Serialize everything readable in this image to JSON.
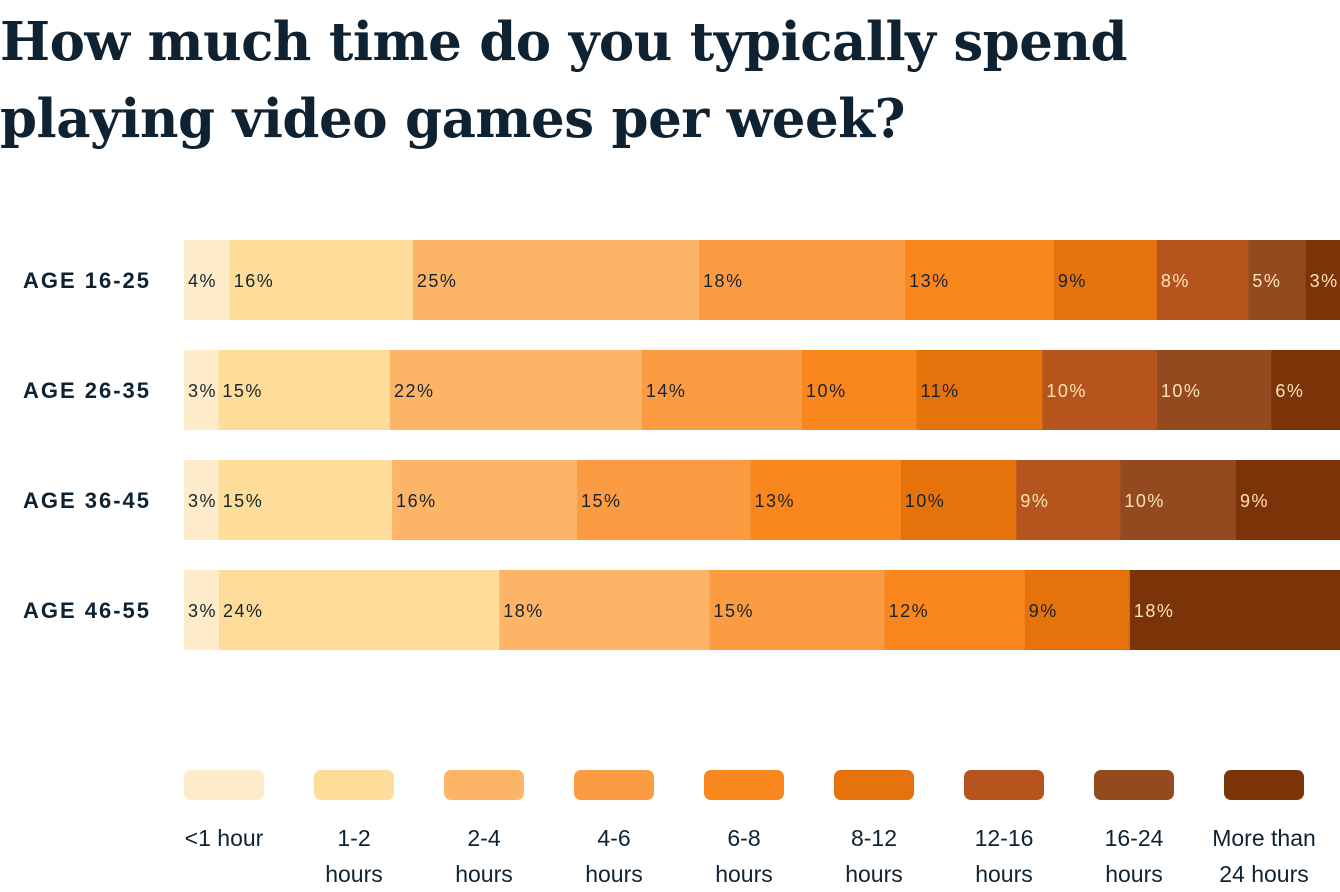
{
  "chart_data": {
    "type": "bar",
    "orientation": "horizontal",
    "stacked": true,
    "title": "How much time do you typically spend playing video games per week?",
    "categories": [
      "AGE 16-25",
      "AGE 26-35",
      "AGE 36-45",
      "AGE 46-55"
    ],
    "series": [
      {
        "name": "<1 hour",
        "label_lines": [
          "<1 hour"
        ],
        "color": "#fdebc9",
        "values": [
          4,
          3,
          3,
          3
        ]
      },
      {
        "name": "1-2 hours",
        "label_lines": [
          "1-2",
          "hours"
        ],
        "color": "#fedc9a",
        "values": [
          16,
          15,
          15,
          24
        ]
      },
      {
        "name": "2-4 hours",
        "label_lines": [
          "2-4",
          "hours"
        ],
        "color": "#fcb566",
        "values": [
          25,
          22,
          16,
          18
        ]
      },
      {
        "name": "4-6 hours",
        "label_lines": [
          "4-6",
          "hours"
        ],
        "color": "#fb9c42",
        "values": [
          18,
          14,
          15,
          15
        ]
      },
      {
        "name": "6-8 hours",
        "label_lines": [
          "6-8",
          "hours"
        ],
        "color": "#f9871e",
        "values": [
          13,
          10,
          13,
          12
        ]
      },
      {
        "name": "8-12 hours",
        "label_lines": [
          "8-12",
          "hours"
        ],
        "color": "#e6720c",
        "values": [
          9,
          11,
          10,
          9
        ]
      },
      {
        "name": "12-16 hours",
        "label_lines": [
          "12-16",
          "hours"
        ],
        "color": "#b6541e",
        "values": [
          8,
          10,
          9,
          null
        ]
      },
      {
        "name": "16-24 hours",
        "label_lines": [
          "16-24",
          "hours"
        ],
        "color": "#924a1e",
        "values": [
          5,
          10,
          10,
          null
        ]
      },
      {
        "name": "More than 24 hours",
        "label_lines": [
          "More than",
          "24 hours"
        ],
        "color": "#7b3408",
        "values": [
          3,
          6,
          9,
          18
        ]
      }
    ],
    "value_suffix": "%",
    "legend_position": "bottom",
    "grid": false
  }
}
